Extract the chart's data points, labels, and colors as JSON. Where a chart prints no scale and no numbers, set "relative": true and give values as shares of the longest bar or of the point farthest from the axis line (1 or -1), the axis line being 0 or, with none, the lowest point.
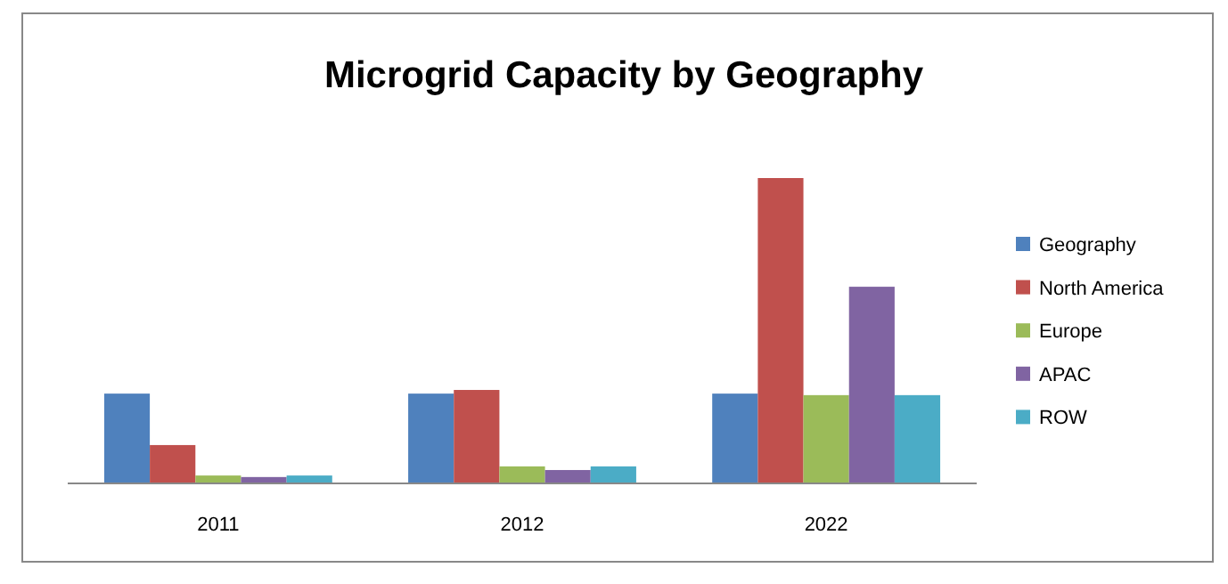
{
  "chart_data": {
    "type": "bar",
    "title": "Microgrid Capacity by Geography",
    "categories": [
      "2011",
      "2012",
      "2022"
    ],
    "relative": true,
    "legend": "right",
    "series": [
      {
        "name": "Geography",
        "color": "#4f81bd",
        "values": [
          0.292,
          0.292,
          0.292
        ]
      },
      {
        "name": "North America",
        "color": "#c0504d",
        "values": [
          0.123,
          0.304,
          1
        ]
      },
      {
        "name": "Europe",
        "color": "#9bbb59",
        "values": [
          0.023,
          0.053,
          0.287
        ]
      },
      {
        "name": "APAC",
        "color": "#8064a2",
        "values": [
          0.018,
          0.041,
          0.643
        ]
      },
      {
        "name": "ROW",
        "color": "#4bacc6",
        "values": [
          0.023,
          0.053,
          0.287
        ]
      }
    ]
  }
}
